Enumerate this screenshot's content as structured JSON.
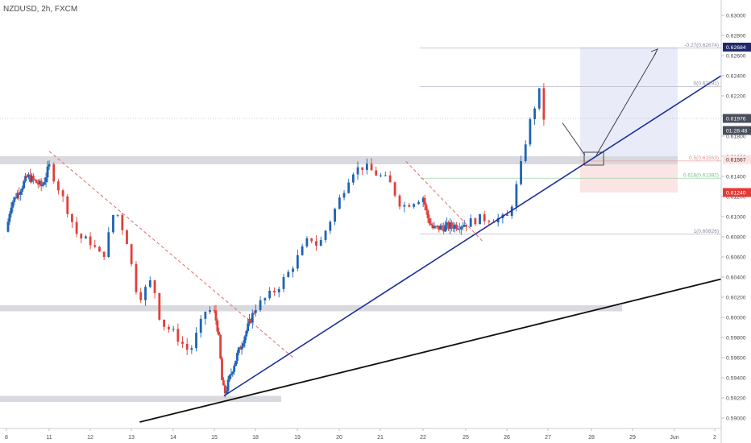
{
  "chart_data": {
    "type": "candlestick",
    "symbol": "NZDUSD, 2h, FXCM",
    "y_range": [
      0.5888,
      0.6318
    ],
    "y_ticks": [
      "0.59000",
      "0.59200",
      "0.59400",
      "0.59600",
      "0.59800",
      "0.60000",
      "0.60200",
      "0.60400",
      "0.60600",
      "0.60800",
      "0.61000",
      "0.61200",
      "0.61400",
      "0.61600",
      "0.61800",
      "0.62000",
      "0.62200",
      "0.62400",
      "0.62600",
      "0.62800",
      "0.63000"
    ],
    "x_ticks": [
      "8",
      "11",
      "12",
      "13",
      "14",
      "15",
      "18",
      "19",
      "20",
      "21",
      "22",
      "25",
      "26",
      "27",
      "28",
      "29",
      "Jun",
      "2"
    ],
    "price_labels": [
      {
        "text": "0.62684",
        "value": 0.62684,
        "color": "#1f2a6b"
      },
      {
        "text": "0.61976",
        "value": 0.61976,
        "color": "#4a4f5c"
      },
      {
        "text": "01:28:48",
        "value": 0.61856,
        "color": "#4a4f5c"
      },
      {
        "text": "0.61567",
        "value": 0.61567,
        "color": "#ffe0e0",
        "text_color": "#333333"
      },
      {
        "text": "0.61240",
        "value": 0.6124,
        "color": "#e53935"
      }
    ],
    "fib_labels": [
      {
        "text": "-0.27(0.62674)",
        "value": 0.62674
      },
      {
        "text": "0(0.62291)",
        "value": 0.62291
      },
      {
        "text": "0.5(0.61553)",
        "value": 0.61553
      },
      {
        "text": "0.618(0.61382)",
        "value": 0.61382
      },
      {
        "text": "1(0.60826)",
        "value": 0.60826
      }
    ],
    "series": [
      {
        "name": "price",
        "close_path": [
          {
            "day": 8.0,
            "price": 0.6085
          },
          {
            "day": 8.3,
            "price": 0.6112
          },
          {
            "day": 9.5,
            "price": 0.614
          },
          {
            "day": 10.5,
            "price": 0.613
          },
          {
            "day": 11.0,
            "price": 0.615
          },
          {
            "day": 11.4,
            "price": 0.6112
          },
          {
            "day": 11.7,
            "price": 0.608
          },
          {
            "day": 12.0,
            "price": 0.6075
          },
          {
            "day": 12.3,
            "price": 0.6058
          },
          {
            "day": 12.5,
            "price": 0.609
          },
          {
            "day": 12.6,
            "price": 0.611
          },
          {
            "day": 12.9,
            "price": 0.6075
          },
          {
            "day": 13.1,
            "price": 0.603
          },
          {
            "day": 13.2,
            "price": 0.602
          },
          {
            "day": 13.5,
            "price": 0.6038
          },
          {
            "day": 13.7,
            "price": 0.5995
          },
          {
            "day": 14.0,
            "price": 0.5985
          },
          {
            "day": 14.4,
            "price": 0.5965
          },
          {
            "day": 14.8,
            "price": 0.6008
          },
          {
            "day": 15.0,
            "price": 0.6005
          },
          {
            "day": 15.3,
            "price": 0.5985
          },
          {
            "day": 15.6,
            "price": 0.593
          },
          {
            "day": 15.8,
            "price": 0.5925
          },
          {
            "day": 16.3,
            "price": 0.5948
          },
          {
            "day": 16.6,
            "price": 0.596
          },
          {
            "day": 18.5,
            "price": 0.6028
          },
          {
            "day": 18.8,
            "price": 0.6045
          },
          {
            "day": 19.3,
            "price": 0.608
          },
          {
            "day": 19.5,
            "price": 0.607
          },
          {
            "day": 20.3,
            "price": 0.6145
          },
          {
            "day": 20.6,
            "price": 0.615
          },
          {
            "day": 21.2,
            "price": 0.6135
          },
          {
            "day": 21.5,
            "price": 0.611
          },
          {
            "day": 22.0,
            "price": 0.612
          },
          {
            "day": 22.3,
            "price": 0.61
          },
          {
            "day": 22.7,
            "price": 0.6088
          },
          {
            "day": 25.0,
            "price": 0.6093
          },
          {
            "day": 25.3,
            "price": 0.6098
          },
          {
            "day": 26.0,
            "price": 0.6098
          },
          {
            "day": 26.1,
            "price": 0.611
          },
          {
            "day": 26.3,
            "price": 0.614
          },
          {
            "day": 26.4,
            "price": 0.6165
          },
          {
            "day": 26.6,
            "price": 0.62
          },
          {
            "day": 26.8,
            "price": 0.6225
          },
          {
            "day": 26.9,
            "price": 0.6198
          }
        ]
      }
    ],
    "annotations": {
      "support_zones": [
        {
          "low": 0.6152,
          "high": 0.616
        },
        {
          "low": 0.6006,
          "high": 0.6012
        },
        {
          "low": 0.5916,
          "high": 0.5922
        }
      ],
      "ascending_trendline": {
        "from": {
          "day": 15.7,
          "price": 0.5922
        },
        "to": {
          "day": 2.0,
          "price": 0.624
        }
      },
      "long_trendline": {
        "from": {
          "day": 13.2,
          "price": 0.5896
        },
        "to": {
          "day": 2.0,
          "price": 0.6038
        }
      },
      "descending_lines": [
        {
          "from": {
            "day": 11.0,
            "price": 0.6165
          },
          "to": {
            "day": 18.9,
            "price": 0.596
          }
        },
        {
          "from": {
            "day": 21.6,
            "price": 0.6155
          },
          "to": {
            "day": 25.4,
            "price": 0.6076
          }
        }
      ],
      "projection_box": {
        "entry": 0.61553,
        "target": 0.62684,
        "stop": 0.6124
      },
      "projection_arrows": [
        {
          "from": {
            "day": 26.7,
            "price": 0.6198
          },
          "to": {
            "day": 27.9,
            "price": 0.6161
          }
        },
        {
          "from": {
            "day": 27.9,
            "price": 0.6161
          },
          "to": {
            "day": 28.7,
            "price": 0.6266
          }
        }
      ]
    }
  }
}
